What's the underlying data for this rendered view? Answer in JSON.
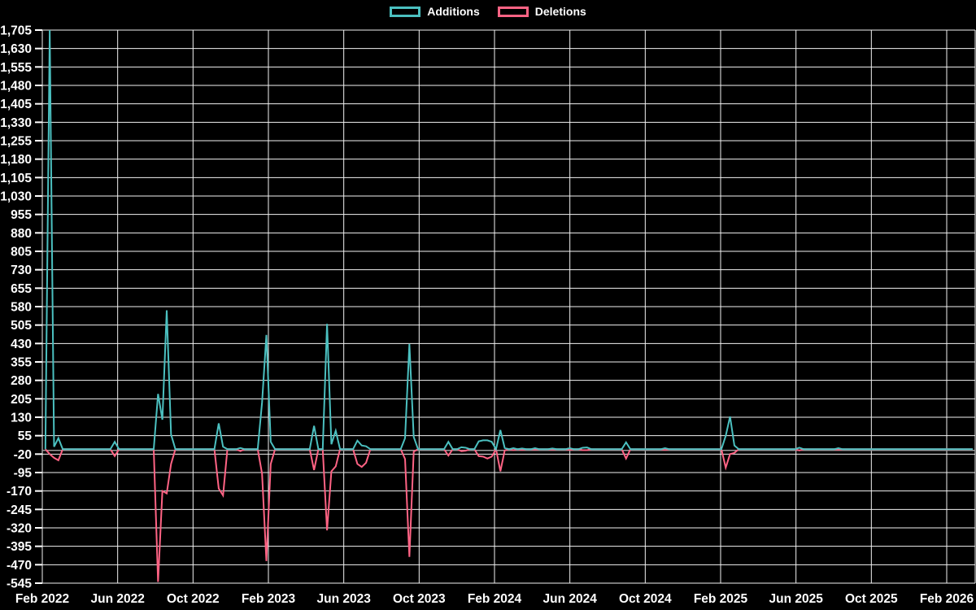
{
  "legend": [
    {
      "label": "Additions",
      "color": "#4BC0C0"
    },
    {
      "label": "Deletions",
      "color": "#FF6384"
    }
  ],
  "chart_data": {
    "type": "line",
    "title": "",
    "xlabel": "",
    "ylabel": "",
    "grid": true,
    "legend_position": "top-center",
    "background": "#000000",
    "grid_color": "#f2f2f2",
    "zero_line_color": "#9a9a9a",
    "tick_label_color": "#ffffff",
    "y_axis": {
      "min": -545,
      "max": 1705,
      "tick_step": 75,
      "ticks": [
        1705,
        1630,
        1555,
        1480,
        1405,
        1330,
        1255,
        1180,
        1105,
        1030,
        955,
        880,
        805,
        730,
        655,
        580,
        505,
        430,
        355,
        280,
        205,
        130,
        55,
        -20,
        -95,
        -170,
        -245,
        -320,
        -395,
        -470,
        -545
      ]
    },
    "x_axis": {
      "start": "2022-02-01",
      "end": "2026-03-15",
      "interval": "weekly",
      "ticks": [
        {
          "label": "Feb 2022",
          "month_offset": 0
        },
        {
          "label": "Jun 2022",
          "month_offset": 4
        },
        {
          "label": "Oct 2022",
          "month_offset": 8
        },
        {
          "label": "Feb 2023",
          "month_offset": 12
        },
        {
          "label": "Jun 2023",
          "month_offset": 16
        },
        {
          "label": "Oct 2023",
          "month_offset": 20
        },
        {
          "label": "Feb 2024",
          "month_offset": 24
        },
        {
          "label": "Jun 2024",
          "month_offset": 28
        },
        {
          "label": "Oct 2024",
          "month_offset": 32
        },
        {
          "label": "Feb 2025",
          "month_offset": 36
        },
        {
          "label": "Jun 2025",
          "month_offset": 40
        },
        {
          "label": "Oct 2025",
          "month_offset": 44
        },
        {
          "label": "Feb 2026",
          "month_offset": 48
        }
      ]
    },
    "series": [
      {
        "name": "Additions",
        "color": "#4BC0C0"
      },
      {
        "name": "Deletions",
        "color": "#FF6384"
      }
    ],
    "baseline_value": 0,
    "note": "Weekly data; all weeks are 0 additions / 0 deletions except the events below",
    "events": [
      {
        "date": "2022-02-13",
        "additions": 1705,
        "deletions": -20
      },
      {
        "date": "2022-02-20",
        "additions": 10,
        "deletions": -35
      },
      {
        "date": "2022-02-27",
        "additions": 45,
        "deletions": -45
      },
      {
        "date": "2022-05-29",
        "additions": 30,
        "deletions": -28
      },
      {
        "date": "2022-08-07",
        "additions": 225,
        "deletions": -540
      },
      {
        "date": "2022-08-14",
        "additions": 120,
        "deletions": -170
      },
      {
        "date": "2022-08-21",
        "additions": 565,
        "deletions": -180
      },
      {
        "date": "2022-08-28",
        "additions": 60,
        "deletions": -60
      },
      {
        "date": "2022-11-13",
        "additions": 105,
        "deletions": -160
      },
      {
        "date": "2022-11-20",
        "additions": 10,
        "deletions": -188
      },
      {
        "date": "2022-12-18",
        "additions": 5,
        "deletions": -8
      },
      {
        "date": "2023-01-22",
        "additions": 190,
        "deletions": -100
      },
      {
        "date": "2023-01-29",
        "additions": 465,
        "deletions": -455
      },
      {
        "date": "2023-02-05",
        "additions": 30,
        "deletions": -60
      },
      {
        "date": "2023-04-16",
        "additions": 95,
        "deletions": -85
      },
      {
        "date": "2023-05-07",
        "additions": 510,
        "deletions": -330
      },
      {
        "date": "2023-05-14",
        "additions": 20,
        "deletions": -90
      },
      {
        "date": "2023-05-21",
        "additions": 75,
        "deletions": -70
      },
      {
        "date": "2023-06-25",
        "additions": 35,
        "deletions": -60
      },
      {
        "date": "2023-07-02",
        "additions": 15,
        "deletions": -72
      },
      {
        "date": "2023-07-09",
        "additions": 12,
        "deletions": -55
      },
      {
        "date": "2023-09-10",
        "additions": 45,
        "deletions": -40
      },
      {
        "date": "2023-09-17",
        "additions": 428,
        "deletions": -438
      },
      {
        "date": "2023-09-24",
        "additions": 50,
        "deletions": -10
      },
      {
        "date": "2023-11-19",
        "additions": 30,
        "deletions": -26
      },
      {
        "date": "2023-12-10",
        "additions": 8,
        "deletions": -8
      },
      {
        "date": "2023-12-17",
        "additions": 6,
        "deletions": -6
      },
      {
        "date": "2024-01-07",
        "additions": 32,
        "deletions": -28
      },
      {
        "date": "2024-01-14",
        "additions": 36,
        "deletions": -30
      },
      {
        "date": "2024-01-21",
        "additions": 36,
        "deletions": -38
      },
      {
        "date": "2024-01-28",
        "additions": 30,
        "deletions": -30
      },
      {
        "date": "2024-02-11",
        "additions": 78,
        "deletions": -90
      },
      {
        "date": "2024-02-18",
        "additions": 5,
        "deletions": -5
      },
      {
        "date": "2024-03-03",
        "additions": 4,
        "deletions": -4
      },
      {
        "date": "2024-03-17",
        "additions": 3,
        "deletions": -3
      },
      {
        "date": "2024-04-07",
        "additions": 4,
        "deletions": -2
      },
      {
        "date": "2024-05-05",
        "additions": 3,
        "deletions": -2
      },
      {
        "date": "2024-06-02",
        "additions": 4,
        "deletions": -3
      },
      {
        "date": "2024-06-23",
        "additions": 6,
        "deletions": -4
      },
      {
        "date": "2024-06-30",
        "additions": 7,
        "deletions": -4
      },
      {
        "date": "2024-09-01",
        "additions": 28,
        "deletions": -38
      },
      {
        "date": "2024-11-03",
        "additions": 4,
        "deletions": -3
      },
      {
        "date": "2025-02-09",
        "additions": 54,
        "deletions": -75
      },
      {
        "date": "2025-02-16",
        "additions": 133,
        "deletions": -20
      },
      {
        "date": "2025-02-23",
        "additions": 15,
        "deletions": -15
      },
      {
        "date": "2025-06-08",
        "additions": 6,
        "deletions": -5
      },
      {
        "date": "2025-08-10",
        "additions": 4,
        "deletions": -2
      }
    ]
  }
}
